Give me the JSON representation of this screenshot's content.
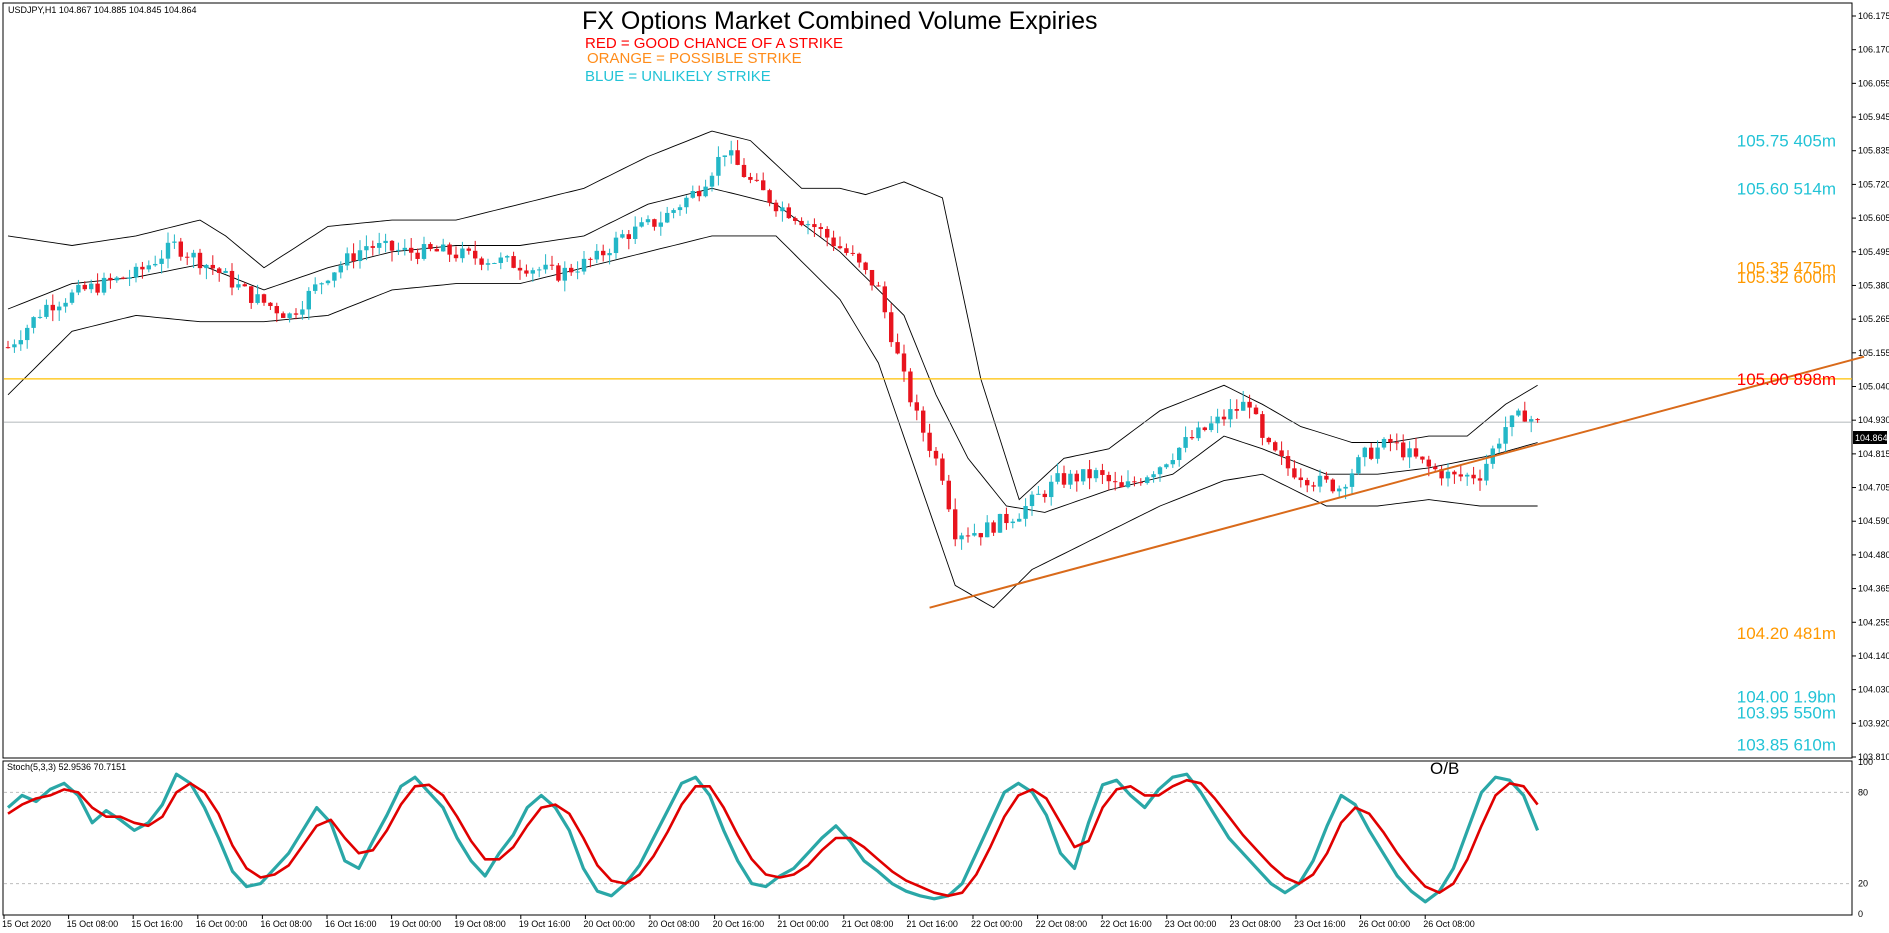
{
  "header": {
    "symbol_line": "USDJPY,H1  104.867 104.885 104.845 104.864",
    "title": "FX Options Market Combined Volume Expiries",
    "legend": [
      {
        "text": "RED = GOOD CHANCE OF A STRIKE",
        "color": "#ff0000"
      },
      {
        "text": "ORANGE = POSSIBLE STRIKE",
        "color": "#ff8c1a"
      },
      {
        "text": "BLUE = UNLIKELY STRIKE",
        "color": "#22c3d6"
      }
    ]
  },
  "colors": {
    "bull": "#23b7c7",
    "bear": "#e8141e",
    "band": "#000000",
    "level": "#ffc000",
    "trend": "#d96a1a",
    "stoch_main": "#2aa7a7",
    "stoch_signal": "#e00000",
    "grid": "#bdbdbd"
  },
  "chart_data": [
    {
      "type": "candlestick",
      "title": "USDJPY,H1",
      "ylim": [
        103.81,
        106.18
      ],
      "y_ticks": [
        "106.175",
        "106.170",
        "106.055",
        "105.945",
        "105.835",
        "105.720",
        "105.605",
        "105.495",
        "105.380",
        "105.265",
        "105.155",
        "105.040",
        "104.930",
        "104.815",
        "104.705",
        "104.590",
        "104.480",
        "104.365",
        "104.255",
        "104.140",
        "104.030",
        "103.920",
        "103.810"
      ],
      "current_price": "104.864",
      "x_ticks": [
        "15 Oct 2020",
        "15 Oct 08:00",
        "15 Oct 16:00",
        "16 Oct 00:00",
        "16 Oct 08:00",
        "16 Oct 16:00",
        "19 Oct 00:00",
        "19 Oct 08:00",
        "19 Oct 16:00",
        "20 Oct 00:00",
        "20 Oct 08:00",
        "20 Oct 16:00",
        "21 Oct 00:00",
        "21 Oct 08:00",
        "21 Oct 16:00",
        "22 Oct 00:00",
        "22 Oct 08:00",
        "22 Oct 16:00",
        "23 Oct 00:00",
        "23 Oct 08:00",
        "23 Oct 16:00",
        "26 Oct 00:00",
        "26 Oct 08:00"
      ],
      "close_path": [
        [
          0,
          105.1
        ],
        [
          6,
          105.23
        ],
        [
          12,
          105.28
        ],
        [
          20,
          105.33
        ],
        [
          26,
          105.42
        ],
        [
          32,
          105.35
        ],
        [
          38,
          105.26
        ],
        [
          44,
          105.2
        ],
        [
          50,
          105.33
        ],
        [
          56,
          105.42
        ],
        [
          62,
          105.4
        ],
        [
          68,
          105.4
        ],
        [
          74,
          105.38
        ],
        [
          80,
          105.36
        ],
        [
          86,
          105.33
        ],
        [
          92,
          105.38
        ],
        [
          96,
          105.45
        ],
        [
          102,
          105.5
        ],
        [
          108,
          105.6
        ],
        [
          112,
          105.72
        ],
        [
          116,
          105.62
        ],
        [
          120,
          105.55
        ],
        [
          126,
          105.48
        ],
        [
          132,
          105.38
        ],
        [
          136,
          105.28
        ],
        [
          140,
          105.0
        ],
        [
          142,
          104.88
        ],
        [
          146,
          104.7
        ],
        [
          148,
          104.52
        ],
        [
          152,
          104.52
        ],
        [
          158,
          104.58
        ],
        [
          164,
          104.68
        ],
        [
          170,
          104.7
        ],
        [
          174,
          104.65
        ],
        [
          180,
          104.73
        ],
        [
          184,
          104.8
        ],
        [
          190,
          104.88
        ],
        [
          194,
          104.93
        ],
        [
          196,
          104.8
        ],
        [
          200,
          104.72
        ],
        [
          204,
          104.68
        ],
        [
          208,
          104.66
        ],
        [
          212,
          104.76
        ],
        [
          216,
          104.8
        ],
        [
          222,
          104.72
        ],
        [
          226,
          104.69
        ],
        [
          230,
          104.7
        ],
        [
          234,
          104.85
        ],
        [
          237,
          104.89
        ],
        [
          239,
          104.86
        ]
      ],
      "bands": {
        "upper": [
          [
            0,
            105.45
          ],
          [
            10,
            105.42
          ],
          [
            20,
            105.45
          ],
          [
            30,
            105.5
          ],
          [
            34,
            105.45
          ],
          [
            40,
            105.35
          ],
          [
            50,
            105.48
          ],
          [
            60,
            105.5
          ],
          [
            70,
            105.5
          ],
          [
            80,
            105.55
          ],
          [
            90,
            105.6
          ],
          [
            100,
            105.7
          ],
          [
            110,
            105.78
          ],
          [
            116,
            105.75
          ],
          [
            124,
            105.6
          ],
          [
            130,
            105.6
          ],
          [
            134,
            105.58
          ],
          [
            140,
            105.62
          ],
          [
            146,
            105.57
          ],
          [
            152,
            105.0
          ],
          [
            158,
            104.62
          ],
          [
            165,
            104.75
          ],
          [
            172,
            104.78
          ],
          [
            180,
            104.9
          ],
          [
            190,
            104.98
          ],
          [
            196,
            104.92
          ],
          [
            202,
            104.85
          ],
          [
            210,
            104.8
          ],
          [
            216,
            104.8
          ],
          [
            222,
            104.82
          ],
          [
            228,
            104.82
          ],
          [
            234,
            104.92
          ],
          [
            239,
            104.98
          ]
        ],
        "mid": [
          [
            0,
            105.22
          ],
          [
            10,
            105.3
          ],
          [
            20,
            105.32
          ],
          [
            30,
            105.36
          ],
          [
            40,
            105.28
          ],
          [
            50,
            105.35
          ],
          [
            60,
            105.4
          ],
          [
            70,
            105.42
          ],
          [
            80,
            105.42
          ],
          [
            90,
            105.45
          ],
          [
            100,
            105.55
          ],
          [
            110,
            105.6
          ],
          [
            120,
            105.55
          ],
          [
            130,
            105.4
          ],
          [
            140,
            105.2
          ],
          [
            145,
            104.95
          ],
          [
            150,
            104.75
          ],
          [
            156,
            104.6
          ],
          [
            162,
            104.58
          ],
          [
            172,
            104.65
          ],
          [
            182,
            104.7
          ],
          [
            190,
            104.82
          ],
          [
            196,
            104.78
          ],
          [
            206,
            104.7
          ],
          [
            214,
            104.7
          ],
          [
            222,
            104.72
          ],
          [
            232,
            104.76
          ],
          [
            239,
            104.8
          ]
        ],
        "lower": [
          [
            0,
            104.95
          ],
          [
            10,
            105.15
          ],
          [
            20,
            105.2
          ],
          [
            30,
            105.18
          ],
          [
            40,
            105.18
          ],
          [
            50,
            105.2
          ],
          [
            60,
            105.28
          ],
          [
            70,
            105.3
          ],
          [
            80,
            105.3
          ],
          [
            90,
            105.35
          ],
          [
            100,
            105.4
          ],
          [
            110,
            105.45
          ],
          [
            120,
            105.45
          ],
          [
            130,
            105.25
          ],
          [
            136,
            105.05
          ],
          [
            142,
            104.7
          ],
          [
            148,
            104.35
          ],
          [
            154,
            104.28
          ],
          [
            160,
            104.4
          ],
          [
            170,
            104.5
          ],
          [
            180,
            104.6
          ],
          [
            190,
            104.68
          ],
          [
            196,
            104.7
          ],
          [
            206,
            104.6
          ],
          [
            214,
            104.6
          ],
          [
            222,
            104.62
          ],
          [
            230,
            104.6
          ],
          [
            239,
            104.6
          ]
        ]
      },
      "levels": [
        {
          "price": 105.75,
          "label": "105.75 405m",
          "color": "#22c3d6"
        },
        {
          "price": 105.6,
          "label": "105.60 514m",
          "color": "#22c3d6"
        },
        {
          "price": 105.35,
          "label": "105.35 475m",
          "color": "#ff9900"
        },
        {
          "price": 105.32,
          "label": "105.32 600m",
          "color": "#ff9900"
        },
        {
          "price": 105.0,
          "label": "105.00 898m",
          "color": "#ff0000"
        },
        {
          "price": 104.2,
          "label": "104.20 481m",
          "color": "#ff9900"
        },
        {
          "price": 104.0,
          "label": "104.00 1.9bn",
          "color": "#22c3d6"
        },
        {
          "price": 103.95,
          "label": "103.95 550m",
          "color": "#22c3d6"
        },
        {
          "price": 103.85,
          "label": "103.85 610m",
          "color": "#22c3d6"
        }
      ],
      "horizontal_line": 105.0,
      "trendline": [
        [
          144,
          104.28
        ],
        [
          290,
          105.07
        ]
      ]
    },
    {
      "type": "line",
      "title": "Stoch(5,3,3) 52.9536 70.7151",
      "ylim": [
        0,
        100
      ],
      "y_ticks": [
        100,
        80,
        20,
        0
      ],
      "annotation": "O/B",
      "series": [
        {
          "values": [
            70,
            78,
            74,
            82,
            86,
            78,
            60,
            68,
            62,
            55,
            60,
            72,
            92,
            86,
            70,
            50,
            28,
            18,
            20,
            30,
            40,
            55,
            70,
            60,
            35,
            30,
            48,
            65,
            84,
            90,
            80,
            70,
            50,
            35,
            25,
            40,
            52,
            70,
            78,
            70,
            55,
            30,
            15,
            12,
            20,
            32,
            50,
            68,
            86,
            90,
            78,
            55,
            35,
            20,
            18,
            25,
            30,
            40,
            50,
            58,
            48,
            35,
            28,
            20,
            15,
            12,
            10,
            12,
            20,
            40,
            60,
            80,
            86,
            80,
            65,
            40,
            30,
            60,
            85,
            88,
            78,
            70,
            82,
            90,
            92,
            80,
            65,
            50,
            40,
            30,
            20,
            14,
            20,
            35,
            58,
            78,
            72,
            55,
            40,
            25,
            15,
            8,
            15,
            30,
            55,
            80,
            90,
            88,
            78,
            55
          ]
        },
        {
          "values": [
            66,
            72,
            76,
            78,
            82,
            80,
            70,
            64,
            64,
            60,
            58,
            64,
            80,
            86,
            80,
            66,
            45,
            30,
            24,
            26,
            32,
            45,
            58,
            62,
            50,
            40,
            42,
            55,
            72,
            84,
            85,
            78,
            64,
            48,
            36,
            36,
            44,
            58,
            70,
            72,
            66,
            50,
            32,
            22,
            20,
            26,
            38,
            54,
            72,
            84,
            84,
            70,
            52,
            36,
            26,
            24,
            26,
            32,
            42,
            50,
            50,
            44,
            36,
            28,
            22,
            18,
            14,
            12,
            14,
            26,
            44,
            64,
            78,
            82,
            76,
            60,
            44,
            48,
            70,
            82,
            84,
            78,
            78,
            84,
            88,
            86,
            76,
            64,
            52,
            42,
            32,
            24,
            20,
            26,
            40,
            60,
            70,
            66,
            54,
            40,
            28,
            18,
            14,
            20,
            36,
            58,
            78,
            86,
            84,
            72
          ]
        }
      ]
    }
  ]
}
